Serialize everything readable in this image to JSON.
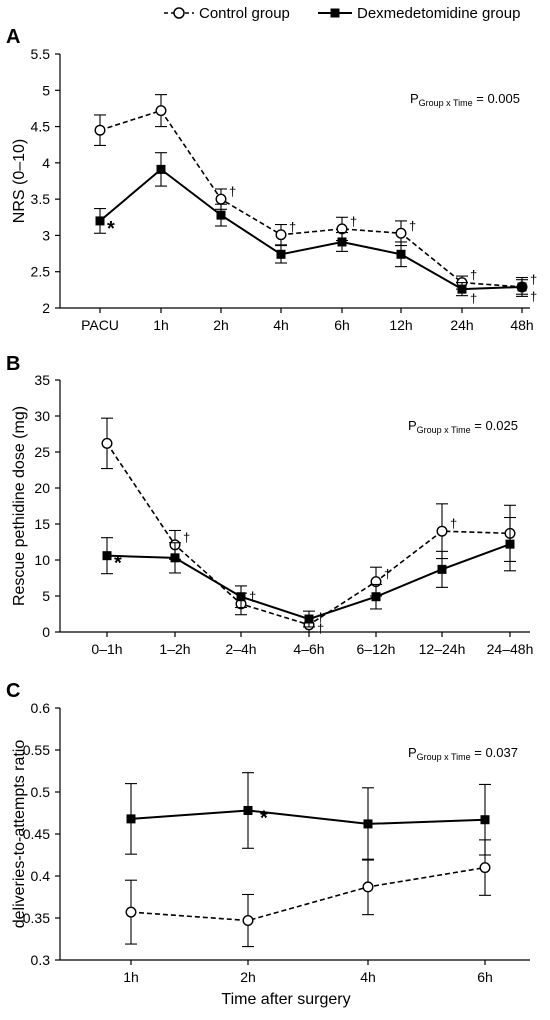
{
  "legend": {
    "control": "Control group",
    "dex": "Dexmedetomidine group"
  },
  "x_label": "Time after surgery",
  "chart_data": [
    {
      "panel": "A",
      "type": "line",
      "ylabel": "NRS (0–10)",
      "ylim": [
        2,
        5.5
      ],
      "yticks": [
        2,
        2.5,
        3,
        3.5,
        4,
        4.5,
        5,
        5.5
      ],
      "categories": [
        "PACU",
        "1h",
        "2h",
        "4h",
        "6h",
        "12h",
        "24h",
        "48h"
      ],
      "p_prefix": "P",
      "p_subscript": "Group x Time",
      "p_value": " = 0.005",
      "series": [
        {
          "name": "Control group",
          "values": [
            4.45,
            4.72,
            3.5,
            3.01,
            3.09,
            3.03,
            2.35,
            2.29
          ],
          "err": [
            0.21,
            0.22,
            0.14,
            0.14,
            0.16,
            0.17,
            0.09,
            0.1
          ],
          "marks": [
            "",
            "",
            "†",
            "†",
            "†",
            "†",
            "†",
            "†"
          ]
        },
        {
          "name": "Dexmedetomidine group",
          "values": [
            3.2,
            3.91,
            3.28,
            2.74,
            2.91,
            2.74,
            2.26,
            2.29
          ],
          "err": [
            0.17,
            0.23,
            0.15,
            0.12,
            0.13,
            0.17,
            0.09,
            0.13
          ],
          "marks": [
            "*",
            "",
            "",
            "",
            "",
            "",
            "†",
            "†"
          ]
        }
      ]
    },
    {
      "panel": "B",
      "type": "line",
      "ylabel": "Rescue pethidine dose (mg)",
      "ylim": [
        0,
        35
      ],
      "yticks": [
        0,
        5,
        10,
        15,
        20,
        25,
        30,
        35
      ],
      "categories": [
        "0–1h",
        "1–2h",
        "2–4h",
        "4–6h",
        "6–12h",
        "12–24h",
        "24–48h"
      ],
      "p_prefix": "P",
      "p_subscript": "Group x Time",
      "p_value": " = 0.025",
      "series": [
        {
          "name": "Control group",
          "values": [
            26.2,
            12.1,
            3.9,
            1.0,
            7.0,
            14.0,
            13.7
          ],
          "err": [
            3.5,
            2.0,
            1.5,
            1.0,
            2.0,
            3.8,
            3.9
          ],
          "marks": [
            "",
            "†",
            "†",
            "†",
            "†",
            "†",
            ""
          ]
        },
        {
          "name": "Dexmedetomidine group",
          "values": [
            10.6,
            10.3,
            4.9,
            1.8,
            4.9,
            8.7,
            12.2
          ],
          "err": [
            2.5,
            2.1,
            1.5,
            1.1,
            1.7,
            2.5,
            3.7
          ],
          "marks": [
            "*",
            "",
            "",
            "†",
            "",
            "",
            ""
          ]
        }
      ]
    },
    {
      "panel": "C",
      "type": "line",
      "ylabel": "deliveries-to-attempts ratio",
      "ylim": [
        0.3,
        0.6
      ],
      "yticks": [
        0.3,
        0.35,
        0.4,
        0.45,
        0.5,
        0.55,
        0.6
      ],
      "categories": [
        "1h",
        "2h",
        "4h",
        "6h"
      ],
      "p_prefix": "P",
      "p_subscript": "Group x Time",
      "p_value": " = 0.037",
      "series": [
        {
          "name": "Control group",
          "values": [
            0.357,
            0.347,
            0.387,
            0.41
          ],
          "err": [
            0.038,
            0.031,
            0.033,
            0.033
          ],
          "marks": [
            "",
            "",
            "",
            ""
          ]
        },
        {
          "name": "Dexmedetomidine group",
          "values": [
            0.468,
            0.478,
            0.462,
            0.467
          ],
          "err": [
            0.042,
            0.045,
            0.043,
            0.042
          ],
          "marks": [
            "",
            "*",
            "",
            ""
          ]
        }
      ]
    }
  ]
}
